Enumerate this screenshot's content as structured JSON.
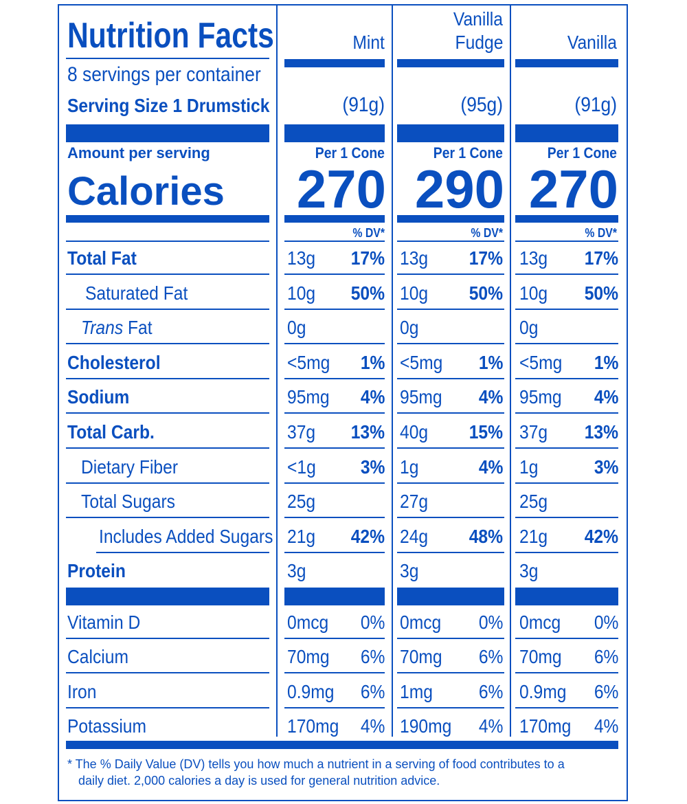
{
  "label": {
    "title": "Nutrition Facts",
    "servings": "8 servings per container",
    "serving_size_label": "Serving Size 1 Drumstick",
    "amount_per_serving": "Amount per serving",
    "calories_label": "Calories",
    "colors": {
      "ink": "#0a4fbf",
      "background": "#ffffff"
    }
  },
  "columns": [
    {
      "name_line1": "",
      "name_line2": "Mint",
      "size": "(91g)",
      "per": "Per 1 Cone",
      "calories": "270",
      "dv_header": "% DV*"
    },
    {
      "name_line1": "Vanilla",
      "name_line2": "Fudge",
      "size": "(95g)",
      "per": "Per 1 Cone",
      "calories": "290",
      "dv_header": "% DV*"
    },
    {
      "name_line1": "",
      "name_line2": "Vanilla",
      "size": "(91g)",
      "per": "Per 1 Cone",
      "calories": "270",
      "dv_header": "% DV*"
    }
  ],
  "nutrients": [
    {
      "label": "Total Fat",
      "vals": [
        [
          "13g",
          "17%"
        ],
        [
          "13g",
          "17%"
        ],
        [
          "13g",
          "17%"
        ]
      ]
    },
    {
      "label": "Saturated Fat",
      "vals": [
        [
          "10g",
          "50%"
        ],
        [
          "10g",
          "50%"
        ],
        [
          "10g",
          "50%"
        ]
      ]
    },
    {
      "label_italic": "Trans",
      "label": " Fat",
      "vals": [
        [
          "0g",
          ""
        ],
        [
          "0g",
          ""
        ],
        [
          "0g",
          ""
        ]
      ]
    },
    {
      "label": "Cholesterol",
      "vals": [
        [
          "<5mg",
          "1%"
        ],
        [
          "<5mg",
          "1%"
        ],
        [
          "<5mg",
          "1%"
        ]
      ]
    },
    {
      "label": "Sodium",
      "vals": [
        [
          "95mg",
          "4%"
        ],
        [
          "95mg",
          "4%"
        ],
        [
          "95mg",
          "4%"
        ]
      ]
    },
    {
      "label": "Total Carb.",
      "vals": [
        [
          "37g",
          "13%"
        ],
        [
          "40g",
          "15%"
        ],
        [
          "37g",
          "13%"
        ]
      ]
    },
    {
      "label": "Dietary Fiber",
      "vals": [
        [
          "<1g",
          "3%"
        ],
        [
          "1g",
          "4%"
        ],
        [
          "1g",
          "3%"
        ]
      ]
    },
    {
      "label": "Total Sugars",
      "vals": [
        [
          "25g",
          ""
        ],
        [
          "27g",
          ""
        ],
        [
          "25g",
          ""
        ]
      ]
    },
    {
      "label": "Includes Added Sugars",
      "vals": [
        [
          "21g",
          "42%"
        ],
        [
          "24g",
          "48%"
        ],
        [
          "21g",
          "42%"
        ]
      ]
    },
    {
      "label": "Protein",
      "vals": [
        [
          "3g",
          ""
        ],
        [
          "3g",
          ""
        ],
        [
          "3g",
          ""
        ]
      ]
    }
  ],
  "vitamins": [
    {
      "label": "Vitamin D",
      "vals": [
        [
          "0mcg",
          "0%"
        ],
        [
          "0mcg",
          "0%"
        ],
        [
          "0mcg",
          "0%"
        ]
      ]
    },
    {
      "label": "Calcium",
      "vals": [
        [
          "70mg",
          "6%"
        ],
        [
          "70mg",
          "6%"
        ],
        [
          "70mg",
          "6%"
        ]
      ]
    },
    {
      "label": "Iron",
      "vals": [
        [
          "0.9mg",
          "6%"
        ],
        [
          "1mg",
          "6%"
        ],
        [
          "0.9mg",
          "6%"
        ]
      ]
    },
    {
      "label": "Potassium",
      "vals": [
        [
          "170mg",
          "4%"
        ],
        [
          "190mg",
          "4%"
        ],
        [
          "170mg",
          "4%"
        ]
      ]
    }
  ],
  "footnote": {
    "line1": "* The % Daily Value (DV) tells you how much a nutrient in a serving of food contributes to a",
    "line2": "daily diet. 2,000 calories a day is used for general nutrition advice."
  }
}
